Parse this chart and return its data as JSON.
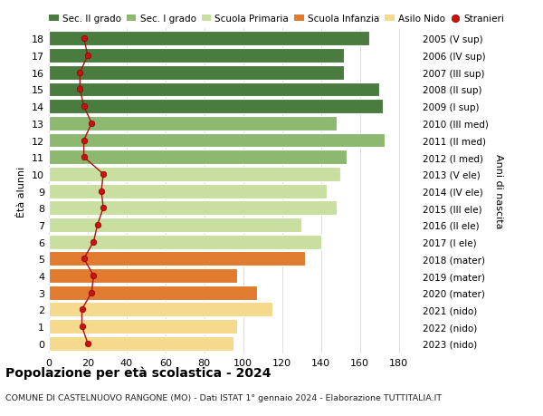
{
  "ages": [
    0,
    1,
    2,
    3,
    4,
    5,
    6,
    7,
    8,
    9,
    10,
    11,
    12,
    13,
    14,
    15,
    16,
    17,
    18
  ],
  "right_labels": [
    "2023 (nido)",
    "2022 (nido)",
    "2021 (nido)",
    "2020 (mater)",
    "2019 (mater)",
    "2018 (mater)",
    "2017 (I ele)",
    "2016 (II ele)",
    "2015 (III ele)",
    "2014 (IV ele)",
    "2013 (V ele)",
    "2012 (I med)",
    "2011 (II med)",
    "2010 (III med)",
    "2009 (I sup)",
    "2008 (II sup)",
    "2007 (III sup)",
    "2006 (IV sup)",
    "2005 (V sup)"
  ],
  "bar_values": [
    95,
    97,
    115,
    107,
    97,
    132,
    140,
    130,
    148,
    143,
    150,
    153,
    173,
    148,
    172,
    170,
    152,
    152,
    165
  ],
  "bar_colors": [
    "#f5d98c",
    "#f5d98c",
    "#f5d98c",
    "#e07b30",
    "#e07b30",
    "#e07b30",
    "#c8dfa0",
    "#c8dfa0",
    "#c8dfa0",
    "#c8dfa0",
    "#c8dfa0",
    "#8db870",
    "#8db870",
    "#8db870",
    "#4a7c3f",
    "#4a7c3f",
    "#4a7c3f",
    "#4a7c3f",
    "#4a7c3f"
  ],
  "stranieri_values": [
    20,
    17,
    17,
    22,
    23,
    18,
    23,
    25,
    28,
    27,
    28,
    18,
    18,
    22,
    18,
    16,
    16,
    20,
    18
  ],
  "xlim": [
    0,
    190
  ],
  "xticks": [
    0,
    20,
    40,
    60,
    80,
    100,
    120,
    140,
    160,
    180
  ],
  "ylabel_left": "Ètà alunni",
  "ylabel_right": "Anni di nascita",
  "title": "Popolazione per età scolastica - 2024",
  "subtitle": "COMUNE DI CASTELNUOVO RANGONE (MO) - Dati ISTAT 1° gennaio 2024 - Elaborazione TUTTITALIA.IT",
  "legend_labels": [
    "Sec. II grado",
    "Sec. I grado",
    "Scuola Primaria",
    "Scuola Infanzia",
    "Asilo Nido",
    "Stranieri"
  ],
  "legend_colors": [
    "#4a7c3f",
    "#8db870",
    "#c8dfa0",
    "#e07b30",
    "#f5d98c",
    "#cc2222"
  ],
  "bg_color": "#ffffff",
  "grid_color": "#dddddd",
  "bar_height": 0.85
}
